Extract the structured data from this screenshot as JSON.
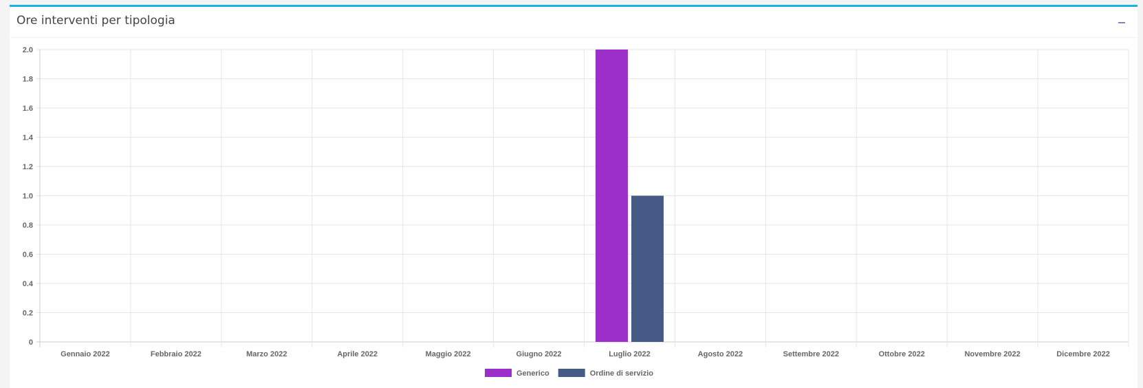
{
  "panel": {
    "title": "Ore interventi per tipologia",
    "collapse_icon": "minus-icon",
    "accent_color": "#1ab3e0"
  },
  "chart_data": {
    "type": "bar",
    "title": "",
    "xlabel": "",
    "ylabel": "",
    "categories": [
      "Gennaio 2022",
      "Febbraio 2022",
      "Marzo 2022",
      "Aprile 2022",
      "Maggio 2022",
      "Giugno 2022",
      "Luglio 2022",
      "Agosto 2022",
      "Settembre 2022",
      "Ottobre 2022",
      "Novembre 2022",
      "Dicembre 2022"
    ],
    "series": [
      {
        "name": "Generico",
        "color": "#9c2fc9",
        "values": [
          0,
          0,
          0,
          0,
          0,
          0,
          2,
          0,
          0,
          0,
          0,
          0
        ]
      },
      {
        "name": "Ordine di servizio",
        "color": "#455a84",
        "values": [
          0,
          0,
          0,
          0,
          0,
          0,
          1,
          0,
          0,
          0,
          0,
          0
        ]
      }
    ],
    "ylim": [
      0,
      2
    ],
    "yticks": [
      "0",
      "0.2",
      "0.4",
      "0.6",
      "0.8",
      "1.0",
      "1.2",
      "1.4",
      "1.6",
      "1.8",
      "2.0"
    ],
    "grid": true,
    "legend_position": "bottom"
  }
}
